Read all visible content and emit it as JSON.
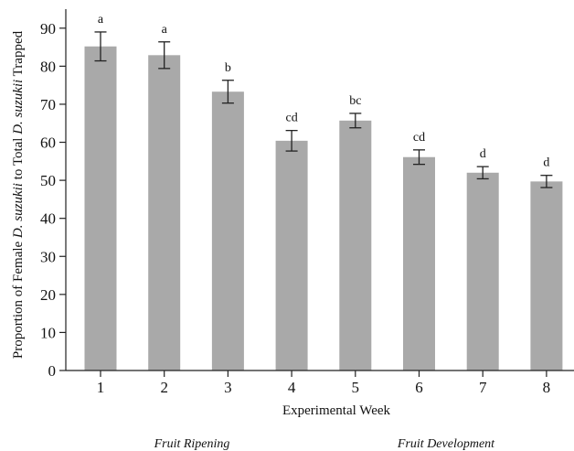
{
  "chart_data": {
    "type": "bar",
    "categories": [
      "1",
      "2",
      "3",
      "4",
      "5",
      "6",
      "7",
      "8"
    ],
    "values": [
      85.2,
      82.9,
      73.3,
      60.4,
      65.7,
      56.1,
      52.0,
      49.7
    ],
    "errors": [
      3.8,
      3.5,
      3.0,
      2.7,
      1.9,
      1.9,
      1.6,
      1.6
    ],
    "group_labels": [
      "a",
      "a",
      "b",
      "cd",
      "bc",
      "cd",
      "d",
      "d"
    ],
    "bar_color": "#a9a9a9",
    "xlabel": "Experimental Week",
    "ylabel_parts": [
      {
        "text": "Proportion of Female ",
        "italic": false
      },
      {
        "text": "D. suzukii",
        "italic": true
      },
      {
        "text": " to Total ",
        "italic": false
      },
      {
        "text": "D. suzukii",
        "italic": true
      },
      {
        "text": " Trapped",
        "italic": false
      }
    ],
    "ylim": [
      0,
      95
    ],
    "yticks": [
      0,
      10,
      20,
      30,
      40,
      50,
      60,
      70,
      80,
      90
    ],
    "grid": false,
    "annotations": [
      "Fruit Ripening",
      "Fruit Development"
    ]
  }
}
